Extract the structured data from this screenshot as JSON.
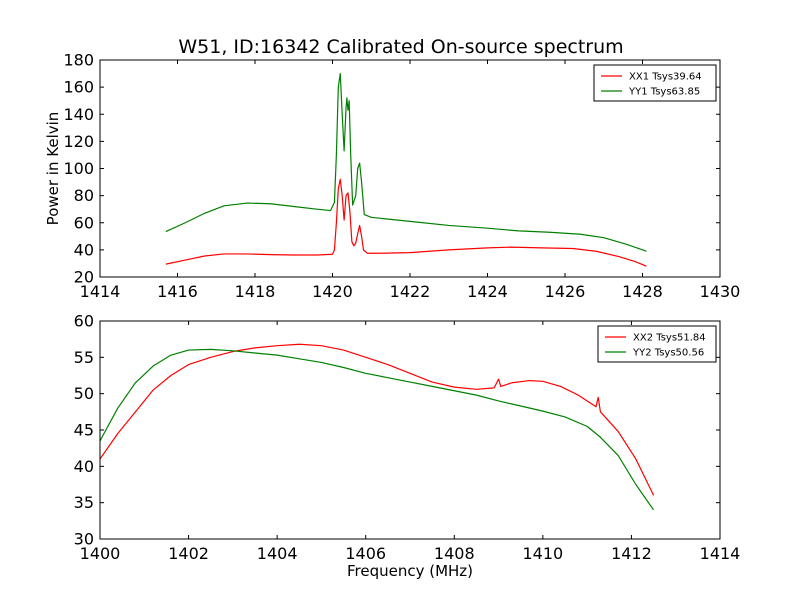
{
  "chart_data": [
    {
      "type": "line",
      "title": "W51, ID:16342 Calibrated On-source spectrum",
      "xlabel": "",
      "ylabel": "Power in Kelvin",
      "xlim": [
        1414,
        1430
      ],
      "ylim": [
        20,
        180
      ],
      "xticks": [
        1414,
        1416,
        1418,
        1420,
        1422,
        1424,
        1426,
        1428,
        1430
      ],
      "yticks": [
        20,
        40,
        60,
        80,
        100,
        120,
        140,
        160,
        180
      ],
      "grid": false,
      "legend_position": "top-right",
      "colors": {
        "XX1": "#ff0000",
        "YY1": "#008000"
      },
      "series": [
        {
          "name": "XX1 Tsys39.64",
          "color": "#ff0000",
          "points": [
            [
              1415.7,
              29.5
            ],
            [
              1416.2,
              32.5
            ],
            [
              1416.7,
              35.5
            ],
            [
              1417.2,
              37
            ],
            [
              1417.8,
              37
            ],
            [
              1418.4,
              36.5
            ],
            [
              1419,
              36.2
            ],
            [
              1419.6,
              36.2
            ],
            [
              1420.0,
              36.8
            ],
            [
              1420.05,
              40
            ],
            [
              1420.1,
              60
            ],
            [
              1420.15,
              85
            ],
            [
              1420.2,
              92
            ],
            [
              1420.25,
              80
            ],
            [
              1420.3,
              62
            ],
            [
              1420.35,
              80
            ],
            [
              1420.4,
              82
            ],
            [
              1420.45,
              68
            ],
            [
              1420.5,
              46
            ],
            [
              1420.55,
              43
            ],
            [
              1420.6,
              45
            ],
            [
              1420.65,
              52
            ],
            [
              1420.7,
              58
            ],
            [
              1420.75,
              50
            ],
            [
              1420.8,
              40
            ],
            [
              1420.9,
              37.5
            ],
            [
              1421.2,
              37.5
            ],
            [
              1422,
              38
            ],
            [
              1423,
              40
            ],
            [
              1424,
              41.5
            ],
            [
              1424.6,
              42
            ],
            [
              1425.4,
              41.5
            ],
            [
              1426.2,
              41
            ],
            [
              1426.8,
              39
            ],
            [
              1427.4,
              35
            ],
            [
              1427.8,
              31.5
            ],
            [
              1428.1,
              28
            ]
          ]
        },
        {
          "name": "YY1 Tsys63.85",
          "color": "#008000",
          "points": [
            [
              1415.7,
              53.5
            ],
            [
              1416.2,
              60
            ],
            [
              1416.7,
              67
            ],
            [
              1417.2,
              72.5
            ],
            [
              1417.8,
              74.5
            ],
            [
              1418.4,
              74
            ],
            [
              1419,
              72
            ],
            [
              1419.6,
              70
            ],
            [
              1419.95,
              69
            ],
            [
              1420.05,
              75
            ],
            [
              1420.1,
              110
            ],
            [
              1420.15,
              160
            ],
            [
              1420.2,
              170
            ],
            [
              1420.25,
              140
            ],
            [
              1420.3,
              113
            ],
            [
              1420.35,
              145
            ],
            [
              1420.37,
              152
            ],
            [
              1420.4,
              143
            ],
            [
              1420.43,
              150
            ],
            [
              1420.47,
              110
            ],
            [
              1420.52,
              73
            ],
            [
              1420.6,
              80
            ],
            [
              1420.65,
              100
            ],
            [
              1420.7,
              104
            ],
            [
              1420.75,
              90
            ],
            [
              1420.82,
              66
            ],
            [
              1421,
              64
            ],
            [
              1422,
              61
            ],
            [
              1423,
              58
            ],
            [
              1424,
              56
            ],
            [
              1424.8,
              54
            ],
            [
              1425.6,
              53
            ],
            [
              1426.4,
              51.5
            ],
            [
              1427.0,
              49
            ],
            [
              1427.6,
              44
            ],
            [
              1428.1,
              39
            ]
          ]
        }
      ]
    },
    {
      "type": "line",
      "title": "",
      "xlabel": "Frequency (MHz)",
      "ylabel": "",
      "xlim": [
        1400,
        1414
      ],
      "ylim": [
        30,
        60
      ],
      "xticks": [
        1400,
        1402,
        1404,
        1406,
        1408,
        1410,
        1412,
        1414
      ],
      "yticks": [
        30,
        35,
        40,
        45,
        50,
        55,
        60
      ],
      "grid": false,
      "legend_position": "top-right",
      "colors": {
        "XX2": "#ff0000",
        "YY2": "#008000"
      },
      "series": [
        {
          "name": "XX2 Tsys51.84",
          "color": "#ff0000",
          "points": [
            [
              1400,
              41
            ],
            [
              1400.4,
              44.5
            ],
            [
              1400.8,
              47.5
            ],
            [
              1401.2,
              50.5
            ],
            [
              1401.6,
              52.5
            ],
            [
              1402,
              54
            ],
            [
              1402.5,
              55
            ],
            [
              1403,
              55.8
            ],
            [
              1403.5,
              56.3
            ],
            [
              1404,
              56.6
            ],
            [
              1404.5,
              56.8
            ],
            [
              1405,
              56.6
            ],
            [
              1405.5,
              56
            ],
            [
              1406,
              55
            ],
            [
              1406.5,
              54
            ],
            [
              1407,
              52.8
            ],
            [
              1407.5,
              51.6
            ],
            [
              1408,
              50.9
            ],
            [
              1408.5,
              50.6
            ],
            [
              1408.9,
              50.8
            ],
            [
              1409.0,
              52
            ],
            [
              1409.05,
              51
            ],
            [
              1409.3,
              51.5
            ],
            [
              1409.7,
              51.8
            ],
            [
              1410,
              51.7
            ],
            [
              1410.4,
              51
            ],
            [
              1410.8,
              49.8
            ],
            [
              1411.2,
              48.2
            ],
            [
              1411.25,
              49.5
            ],
            [
              1411.3,
              47.5
            ],
            [
              1411.7,
              44.8
            ],
            [
              1412.1,
              41
            ],
            [
              1412.5,
              36
            ]
          ]
        },
        {
          "name": "YY2 Tsys50.56",
          "color": "#008000",
          "points": [
            [
              1400,
              43.5
            ],
            [
              1400.4,
              48
            ],
            [
              1400.8,
              51.5
            ],
            [
              1401.2,
              53.8
            ],
            [
              1401.6,
              55.3
            ],
            [
              1402,
              56
            ],
            [
              1402.5,
              56.1
            ],
            [
              1403,
              55.9
            ],
            [
              1403.5,
              55.6
            ],
            [
              1404,
              55.3
            ],
            [
              1404.5,
              54.8
            ],
            [
              1405,
              54.3
            ],
            [
              1405.5,
              53.6
            ],
            [
              1406,
              52.8
            ],
            [
              1406.5,
              52.2
            ],
            [
              1407,
              51.6
            ],
            [
              1407.5,
              51
            ],
            [
              1408,
              50.4
            ],
            [
              1408.5,
              49.8
            ],
            [
              1409,
              49
            ],
            [
              1409.5,
              48.3
            ],
            [
              1410,
              47.6
            ],
            [
              1410.5,
              46.8
            ],
            [
              1411,
              45.5
            ],
            [
              1411.3,
              44
            ],
            [
              1411.7,
              41.5
            ],
            [
              1412.1,
              37.5
            ],
            [
              1412.5,
              34
            ]
          ]
        }
      ]
    }
  ]
}
